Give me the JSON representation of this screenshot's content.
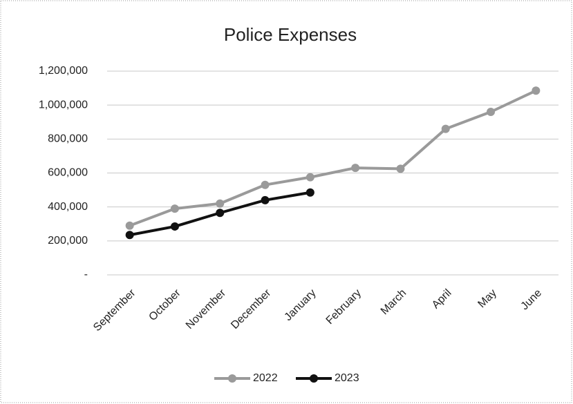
{
  "chart_data": {
    "type": "line",
    "title": "Police Expenses",
    "categories": [
      "September",
      "October",
      "November",
      "December",
      "January",
      "February",
      "March",
      "April",
      "May",
      "June"
    ],
    "series": [
      {
        "name": "2022",
        "color": "#9a9a9a",
        "values": [
          290000,
          390000,
          420000,
          530000,
          575000,
          630000,
          625000,
          860000,
          960000,
          1085000
        ]
      },
      {
        "name": "2023",
        "color": "#111111",
        "values": [
          235000,
          285000,
          365000,
          440000,
          485000,
          null,
          null,
          null,
          null,
          null
        ]
      }
    ],
    "ylim": [
      0,
      1200000
    ],
    "yticks": [
      {
        "value": 0,
        "label": "-"
      },
      {
        "value": 200000,
        "label": "200,000"
      },
      {
        "value": 400000,
        "label": "400,000"
      },
      {
        "value": 600000,
        "label": "600,000"
      },
      {
        "value": 800000,
        "label": "800,000"
      },
      {
        "value": 1000000,
        "label": "1,000,000"
      },
      {
        "value": 1200000,
        "label": "1,200,000"
      }
    ],
    "grid": true,
    "legend": "bottom"
  }
}
